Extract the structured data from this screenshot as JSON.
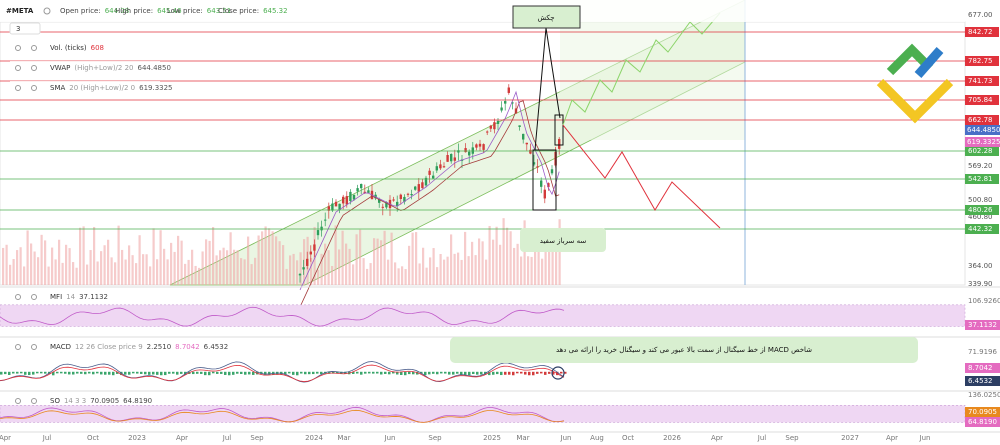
{
  "header": {
    "symbol": "#META",
    "open_label": "Open price:",
    "open": "644.08",
    "high_label": "High price:",
    "high": "645.46",
    "low_label": "Low price:",
    "low": "643.51",
    "close_label": "Close price:",
    "close": "645.32"
  },
  "timeframe": "3",
  "indicators": [
    {
      "name": "Vol. (ticks)",
      "value": "608"
    },
    {
      "name": "VWAP",
      "params": "(High+Low)/2 20",
      "value": "644.4850"
    },
    {
      "name": "SMA",
      "params": "20 (High+Low)/2 0",
      "value": "619.3325"
    }
  ],
  "price_axis": {
    "ticks": [
      "677.00",
      "569.20",
      "500.80",
      "460.80",
      "364.00",
      "339.90"
    ],
    "levels": [
      {
        "label": "842.72",
        "kind": "resistance"
      },
      {
        "label": "782.75",
        "kind": "resistance"
      },
      {
        "label": "741.73",
        "kind": "resistance"
      },
      {
        "label": "705.84",
        "kind": "resistance"
      },
      {
        "label": "662.78",
        "kind": "resistance"
      },
      {
        "label": "602.28",
        "kind": "support"
      },
      {
        "label": "542.81",
        "kind": "support"
      },
      {
        "label": "480.26",
        "kind": "support"
      },
      {
        "label": "442.32",
        "kind": "support"
      }
    ],
    "markers": [
      {
        "label": "644.4850",
        "color": "#4a6fc7"
      },
      {
        "label": "619.3325",
        "color": "#e46bc0"
      }
    ]
  },
  "annotations": {
    "hammer": "چکش",
    "three_soldiers": "سه سرباز سفید",
    "macd_note": "شاخص MACD از خط سیگنال از سمت بالا عبور می کند و سیگنال خرید را ارائه می دهد"
  },
  "panes": [
    {
      "name": "MFI",
      "params": "14",
      "values": [
        "37.1132"
      ],
      "axis": [
        "106.9260"
      ],
      "markers": [
        {
          "label": "37.1132",
          "color": "#e46bc0"
        }
      ]
    },
    {
      "name": "MACD",
      "params": "12 26 Close price 9",
      "values": [
        "2.2510",
        "8.7042",
        "6.4532"
      ],
      "axis": [
        "71.9196"
      ],
      "markers": [
        {
          "label": "8.7042",
          "color": "#e46bc0"
        },
        {
          "label": "6.4532",
          "color": "#2c3e63"
        }
      ]
    },
    {
      "name": "SO",
      "params": "14 3 3",
      "values": [
        "70.0905",
        "64.8190"
      ],
      "axis": [
        "136.0250"
      ],
      "markers": [
        {
          "label": "70.0905",
          "color": "#e8891e"
        },
        {
          "label": "64.8190",
          "color": "#e46bc0"
        }
      ]
    }
  ],
  "time_axis": [
    "Apr",
    "Jul",
    "Oct",
    "2023",
    "Apr",
    "Jul",
    "Sep",
    "2024",
    "Mar",
    "Jun",
    "Sep",
    "2025",
    "Mar",
    "Jun",
    "Aug",
    "Oct",
    "2026",
    "Apr",
    "Jul",
    "Sep",
    "2027",
    "Apr",
    "Jun"
  ]
}
